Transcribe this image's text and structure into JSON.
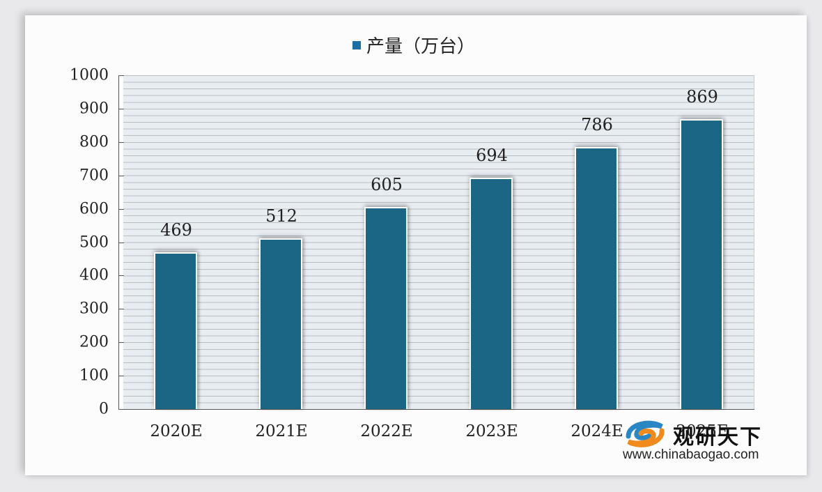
{
  "chart_data": {
    "type": "bar",
    "title": "",
    "legend": [
      "产量（万台）"
    ],
    "legend_position": "top",
    "categories": [
      "2020E",
      "2021E",
      "2022E",
      "2023E",
      "2024E",
      "2025E"
    ],
    "series": [
      {
        "name": "产量（万台）",
        "values": [
          469,
          512,
          605,
          694,
          786,
          869
        ],
        "color": "#1b6585"
      }
    ],
    "xlabel": "",
    "ylabel": "",
    "ylim": [
      0,
      1000
    ],
    "yticks": [
      0,
      100,
      200,
      300,
      400,
      500,
      600,
      700,
      800,
      900,
      1000
    ],
    "grid": true,
    "data_labels": true
  },
  "legend": {
    "label": "产量（万台）",
    "color": "#1a6fa5"
  },
  "yticks": [
    "1000",
    "900",
    "800",
    "700",
    "600",
    "500",
    "400",
    "300",
    "200",
    "100",
    "0"
  ],
  "bars": [
    {
      "category": "2020E",
      "value": "469"
    },
    {
      "category": "2021E",
      "value": "512"
    },
    {
      "category": "2022E",
      "value": "605"
    },
    {
      "category": "2023E",
      "value": "694"
    },
    {
      "category": "2024E",
      "value": "786"
    },
    {
      "category": "2025E",
      "value": "869"
    }
  ],
  "watermark": {
    "name": "观研天下",
    "url": "www.chinabaogao.com"
  }
}
